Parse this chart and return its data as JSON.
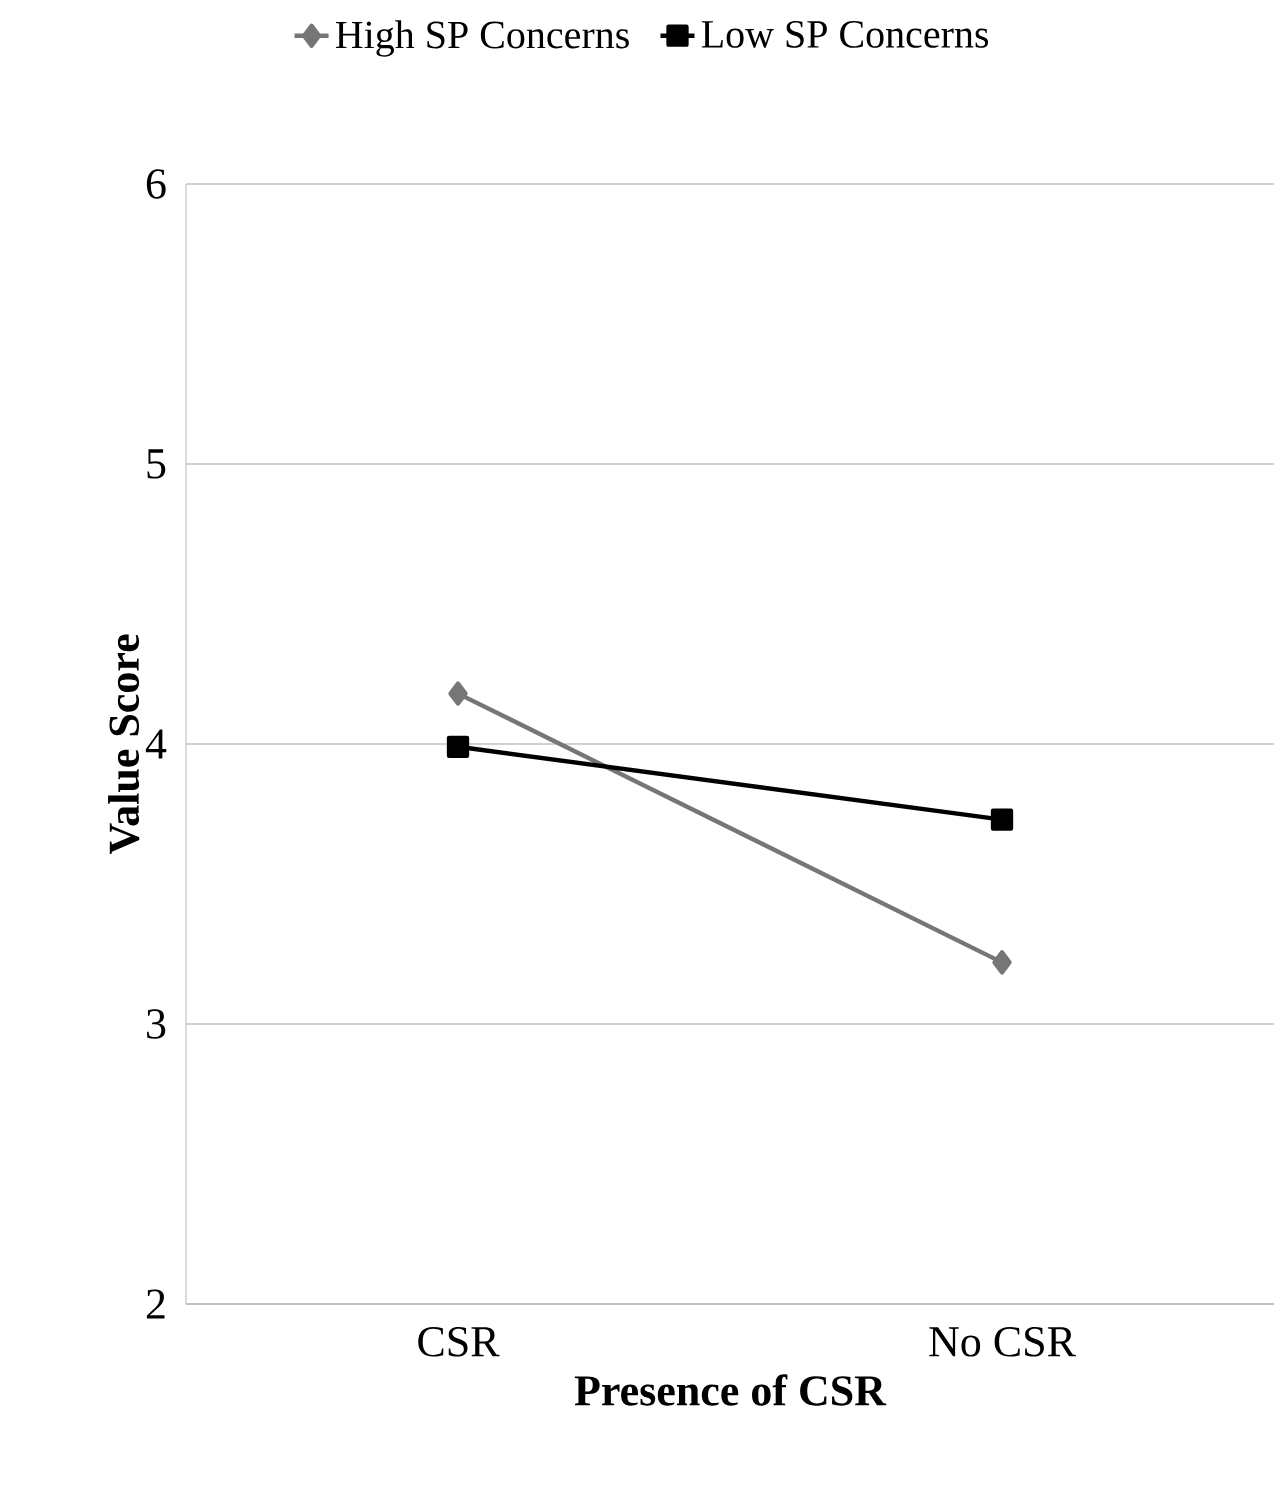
{
  "chart_data": {
    "type": "line",
    "xlabel": "Presence of CSR",
    "ylabel": "Value Score",
    "categories": [
      "CSR",
      "No CSR"
    ],
    "series": [
      {
        "name": "High SP Concerns",
        "color": "#767676",
        "marker": "diamond",
        "values": [
          4.18,
          3.22
        ]
      },
      {
        "name": "Low SP Concerns",
        "color": "#000000",
        "marker": "square",
        "values": [
          3.99,
          3.73
        ]
      }
    ],
    "ylim": [
      2,
      6
    ],
    "yticks": [
      2,
      3,
      4,
      5,
      6
    ],
    "grid": "y",
    "legend": "top"
  }
}
